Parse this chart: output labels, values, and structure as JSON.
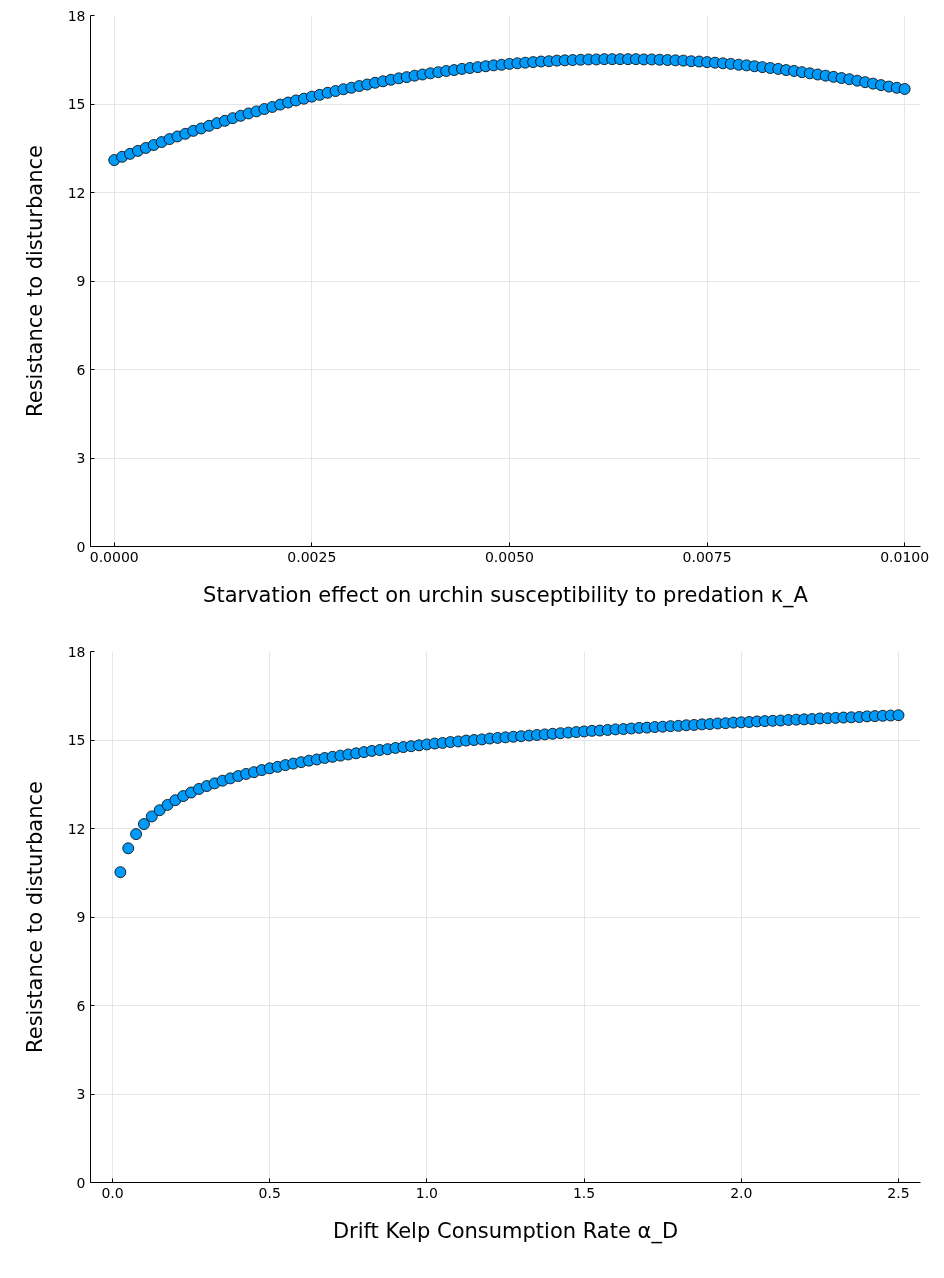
{
  "chart_data": [
    {
      "type": "scatter",
      "xlabel": "Starvation effect on urchin susceptibility to predation κ_A",
      "ylabel": "Resistance to disturbance",
      "marker": "circle",
      "grid": true,
      "xlim": [
        -0.0003,
        0.0102
      ],
      "ylim": [
        0,
        18
      ],
      "xticks": [
        {
          "value": 0,
          "label": "0.0000"
        },
        {
          "value": 0.0025,
          "label": "0.0025"
        },
        {
          "value": 0.005,
          "label": "0.0050"
        },
        {
          "value": 0.0075,
          "label": "0.0075"
        },
        {
          "value": 0.01,
          "label": "0.0100"
        }
      ],
      "yticks": [
        0,
        3,
        6,
        9,
        12,
        15,
        18
      ],
      "x": [
        0,
        0.0001,
        0.0002,
        0.0003,
        0.0004,
        0.0005,
        0.0006,
        0.0007,
        0.0008,
        0.0009,
        0.001,
        0.0011,
        0.0012,
        0.0013,
        0.0014,
        0.0015,
        0.0016,
        0.0017,
        0.0018,
        0.0019,
        0.002,
        0.0021,
        0.0022,
        0.0023,
        0.0024,
        0.0025,
        0.0026,
        0.0027,
        0.0028,
        0.0029,
        0.003,
        0.0031,
        0.0032,
        0.0033,
        0.0034,
        0.0035,
        0.0036,
        0.0037,
        0.0038,
        0.0039,
        0.004,
        0.0041,
        0.0042,
        0.0043,
        0.0044,
        0.0045,
        0.0046,
        0.0047,
        0.0048,
        0.0049,
        0.005,
        0.0051,
        0.0052,
        0.0053,
        0.0054,
        0.0055,
        0.0056,
        0.0057,
        0.0058,
        0.0059,
        0.006,
        0.0061,
        0.0062,
        0.0063,
        0.0064,
        0.0065,
        0.0066,
        0.0067,
        0.0068,
        0.0069,
        0.007,
        0.0071,
        0.0072,
        0.0073,
        0.0074,
        0.0075,
        0.0076,
        0.0077,
        0.0078,
        0.0079,
        0.008,
        0.0081,
        0.0082,
        0.0083,
        0.0084,
        0.0085,
        0.0086,
        0.0087,
        0.0088,
        0.0089,
        0.009,
        0.0091,
        0.0092,
        0.0093,
        0.0094,
        0.0095,
        0.0096,
        0.0097,
        0.0098,
        0.0099,
        0.01
      ],
      "series": [
        {
          "color": "#009af9",
          "values": [
            13.1,
            13.21,
            13.31,
            13.41,
            13.51,
            13.61,
            13.71,
            13.81,
            13.9,
            13.99,
            14.09,
            14.17,
            14.26,
            14.35,
            14.43,
            14.52,
            14.6,
            14.68,
            14.75,
            14.83,
            14.9,
            14.98,
            15.05,
            15.12,
            15.18,
            15.25,
            15.31,
            15.38,
            15.44,
            15.5,
            15.55,
            15.61,
            15.66,
            15.72,
            15.77,
            15.82,
            15.87,
            15.91,
            15.96,
            16.0,
            16.04,
            16.08,
            16.12,
            16.15,
            16.19,
            16.22,
            16.25,
            16.28,
            16.31,
            16.33,
            16.36,
            16.38,
            16.4,
            16.42,
            16.44,
            16.45,
            16.47,
            16.48,
            16.49,
            16.5,
            16.51,
            16.51,
            16.52,
            16.52,
            16.52,
            16.52,
            16.52,
            16.51,
            16.51,
            16.5,
            16.49,
            16.48,
            16.47,
            16.45,
            16.44,
            16.42,
            16.4,
            16.38,
            16.36,
            16.33,
            16.31,
            16.28,
            16.25,
            16.22,
            16.19,
            16.15,
            16.12,
            16.08,
            16.04,
            16.0,
            15.96,
            15.92,
            15.88,
            15.84,
            15.79,
            15.74,
            15.69,
            15.64,
            15.59,
            15.55,
            15.51
          ]
        }
      ]
    },
    {
      "type": "scatter",
      "xlabel": "Drift Kelp Consumption Rate α_D",
      "ylabel": "Resistance to disturbance",
      "marker": "circle",
      "grid": true,
      "xlim": [
        -0.07,
        2.57
      ],
      "ylim": [
        0,
        18
      ],
      "xticks": [
        {
          "value": 0,
          "label": "0.0"
        },
        {
          "value": 0.5,
          "label": "0.5"
        },
        {
          "value": 1,
          "label": "1.0"
        },
        {
          "value": 1.5,
          "label": "1.5"
        },
        {
          "value": 2,
          "label": "2.0"
        },
        {
          "value": 2.5,
          "label": "2.5"
        }
      ],
      "yticks": [
        0,
        3,
        6,
        9,
        12,
        15,
        18
      ],
      "x": [
        0.025,
        0.05,
        0.075,
        0.1,
        0.125,
        0.15,
        0.175,
        0.2,
        0.225,
        0.25,
        0.275,
        0.3,
        0.325,
        0.35,
        0.375,
        0.4,
        0.425,
        0.45,
        0.475,
        0.5,
        0.525,
        0.55,
        0.575,
        0.6,
        0.625,
        0.65,
        0.675,
        0.7,
        0.725,
        0.75,
        0.775,
        0.8,
        0.825,
        0.85,
        0.875,
        0.9,
        0.925,
        0.95,
        0.975,
        1.0,
        1.025,
        1.05,
        1.075,
        1.1,
        1.125,
        1.15,
        1.175,
        1.2,
        1.225,
        1.25,
        1.275,
        1.3,
        1.325,
        1.35,
        1.375,
        1.4,
        1.425,
        1.45,
        1.475,
        1.5,
        1.525,
        1.55,
        1.575,
        1.6,
        1.625,
        1.65,
        1.675,
        1.7,
        1.725,
        1.75,
        1.775,
        1.8,
        1.825,
        1.85,
        1.875,
        1.9,
        1.925,
        1.95,
        1.975,
        2.0,
        2.025,
        2.05,
        2.075,
        2.1,
        2.125,
        2.15,
        2.175,
        2.2,
        2.225,
        2.25,
        2.275,
        2.3,
        2.325,
        2.35,
        2.375,
        2.4,
        2.425,
        2.45,
        2.475,
        2.5
      ],
      "series": [
        {
          "color": "#009af9",
          "values": [
            10.52,
            11.33,
            11.81,
            12.15,
            12.41,
            12.62,
            12.8,
            12.96,
            13.1,
            13.22,
            13.34,
            13.44,
            13.53,
            13.62,
            13.7,
            13.78,
            13.85,
            13.91,
            13.98,
            14.04,
            14.09,
            14.15,
            14.2,
            14.25,
            14.3,
            14.34,
            14.39,
            14.43,
            14.47,
            14.51,
            14.55,
            14.59,
            14.63,
            14.66,
            14.69,
            14.73,
            14.76,
            14.79,
            14.82,
            14.85,
            14.88,
            14.9,
            14.93,
            14.95,
            14.98,
            15.0,
            15.02,
            15.05,
            15.07,
            15.09,
            15.11,
            15.13,
            15.15,
            15.17,
            15.19,
            15.21,
            15.23,
            15.25,
            15.27,
            15.29,
            15.31,
            15.32,
            15.34,
            15.36,
            15.37,
            15.39,
            15.41,
            15.42,
            15.44,
            15.45,
            15.47,
            15.48,
            15.5,
            15.51,
            15.53,
            15.54,
            15.56,
            15.57,
            15.59,
            15.6,
            15.61,
            15.63,
            15.64,
            15.65,
            15.66,
            15.68,
            15.69,
            15.7,
            15.71,
            15.73,
            15.74,
            15.75,
            15.76,
            15.77,
            15.78,
            15.8,
            15.81,
            15.82,
            15.83,
            15.84
          ]
        }
      ]
    }
  ]
}
